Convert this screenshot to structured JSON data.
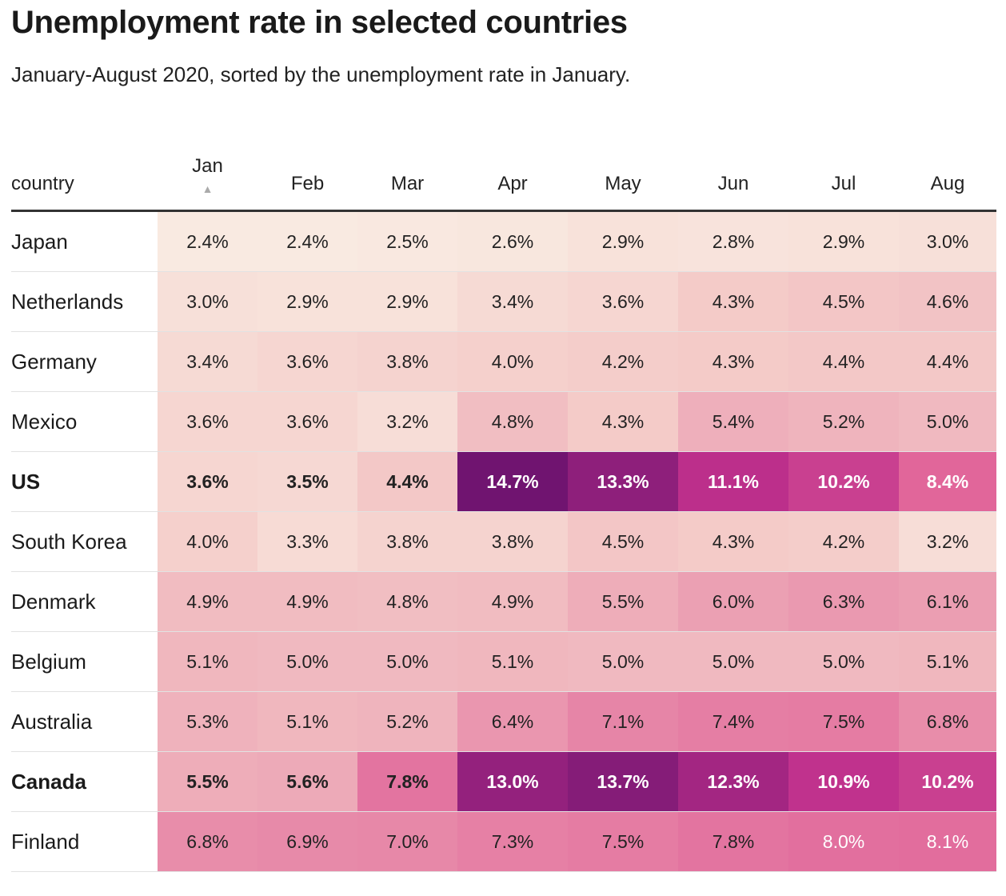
{
  "title": "Unemployment rate in selected countries",
  "subtitle": "January-August 2020, sorted by the unemployment rate in January.",
  "chart_data": {
    "type": "heatmap",
    "title": "Unemployment rate in selected countries",
    "subtitle": "January-August 2020, sorted by the unemployment rate in January.",
    "row_header": "country",
    "sorted_by": "Jan",
    "columns": [
      "Jan",
      "Feb",
      "Mar",
      "Apr",
      "May",
      "Jun",
      "Jul",
      "Aug"
    ],
    "value_suffix": "%",
    "rows": [
      {
        "country": "Japan",
        "bold": false,
        "values": [
          2.4,
          2.4,
          2.5,
          2.6,
          2.9,
          2.8,
          2.9,
          3.0
        ]
      },
      {
        "country": "Netherlands",
        "bold": false,
        "values": [
          3.0,
          2.9,
          2.9,
          3.4,
          3.6,
          4.3,
          4.5,
          4.6
        ]
      },
      {
        "country": "Germany",
        "bold": false,
        "values": [
          3.4,
          3.6,
          3.8,
          4.0,
          4.2,
          4.3,
          4.4,
          4.4
        ]
      },
      {
        "country": "Mexico",
        "bold": false,
        "values": [
          3.6,
          3.6,
          3.2,
          4.8,
          4.3,
          5.4,
          5.2,
          5.0
        ]
      },
      {
        "country": "US",
        "bold": true,
        "values": [
          3.6,
          3.5,
          4.4,
          14.7,
          13.3,
          11.1,
          10.2,
          8.4
        ]
      },
      {
        "country": "South Korea",
        "bold": false,
        "values": [
          4.0,
          3.3,
          3.8,
          3.8,
          4.5,
          4.3,
          4.2,
          3.2
        ]
      },
      {
        "country": "Denmark",
        "bold": false,
        "values": [
          4.9,
          4.9,
          4.8,
          4.9,
          5.5,
          6.0,
          6.3,
          6.1
        ]
      },
      {
        "country": "Belgium",
        "bold": false,
        "values": [
          5.1,
          5.0,
          5.0,
          5.1,
          5.0,
          5.0,
          5.0,
          5.1
        ]
      },
      {
        "country": "Australia",
        "bold": false,
        "values": [
          5.3,
          5.1,
          5.2,
          6.4,
          7.1,
          7.4,
          7.5,
          6.8
        ]
      },
      {
        "country": "Canada",
        "bold": true,
        "values": [
          5.5,
          5.6,
          7.8,
          13.0,
          13.7,
          12.3,
          10.9,
          10.2
        ]
      },
      {
        "country": "Finland",
        "bold": false,
        "values": [
          6.8,
          6.9,
          7.0,
          7.3,
          7.5,
          7.8,
          8.0,
          8.1
        ]
      }
    ]
  }
}
